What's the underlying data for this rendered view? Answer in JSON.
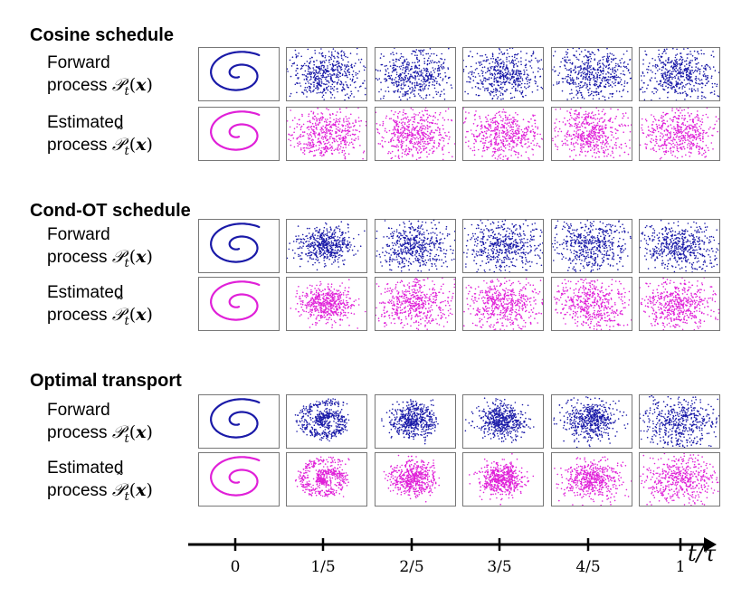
{
  "sections": [
    {
      "title": "Cosine schedule",
      "rows": [
        {
          "line1": "Forward",
          "line2": "process",
          "math": "𝒫",
          "mathSub": "t",
          "arg": "x",
          "tilde": false,
          "color": "#1a1aa8",
          "spread": [
            0,
            1.0,
            1.0,
            1.0,
            1.0,
            1.0
          ]
        },
        {
          "line1": "Estimated",
          "line2": "process",
          "math": "𝒫",
          "mathSub": "t",
          "arg": "x",
          "tilde": true,
          "color": "#e020d8",
          "spread": [
            0,
            1.0,
            1.0,
            1.0,
            1.0,
            1.0
          ]
        }
      ]
    },
    {
      "title": "Cond-OT schedule",
      "rows": [
        {
          "line1": "Forward",
          "line2": "process",
          "math": "𝒫",
          "mathSub": "t",
          "arg": "x",
          "tilde": false,
          "color": "#1a1aa8",
          "spread": [
            0,
            0.6,
            1.0,
            1.0,
            1.0,
            1.0
          ]
        },
        {
          "line1": "Estimated",
          "line2": "process",
          "math": "𝒫",
          "mathSub": "t",
          "arg": "x",
          "tilde": true,
          "color": "#e020d8",
          "spread": [
            0,
            0.6,
            1.0,
            1.0,
            1.0,
            1.0
          ]
        }
      ]
    },
    {
      "title": "Optimal transport",
      "rows": [
        {
          "line1": "Forward",
          "line2": "process",
          "math": "𝒫",
          "mathSub": "t",
          "arg": "x",
          "tilde": false,
          "color": "#1a1aa8",
          "spread": [
            0,
            0.15,
            0.3,
            0.45,
            0.7,
            1.0
          ]
        },
        {
          "line1": "Estimated",
          "line2": "process",
          "math": "𝒫",
          "mathSub": "t",
          "arg": "x",
          "tilde": true,
          "color": "#e020d8",
          "spread": [
            0,
            0.15,
            0.3,
            0.45,
            0.7,
            1.0
          ]
        }
      ]
    }
  ],
  "axis": {
    "ticks": [
      "0",
      "1/5",
      "2/5",
      "3/5",
      "4/5",
      "1"
    ],
    "label": "t/τ"
  }
}
